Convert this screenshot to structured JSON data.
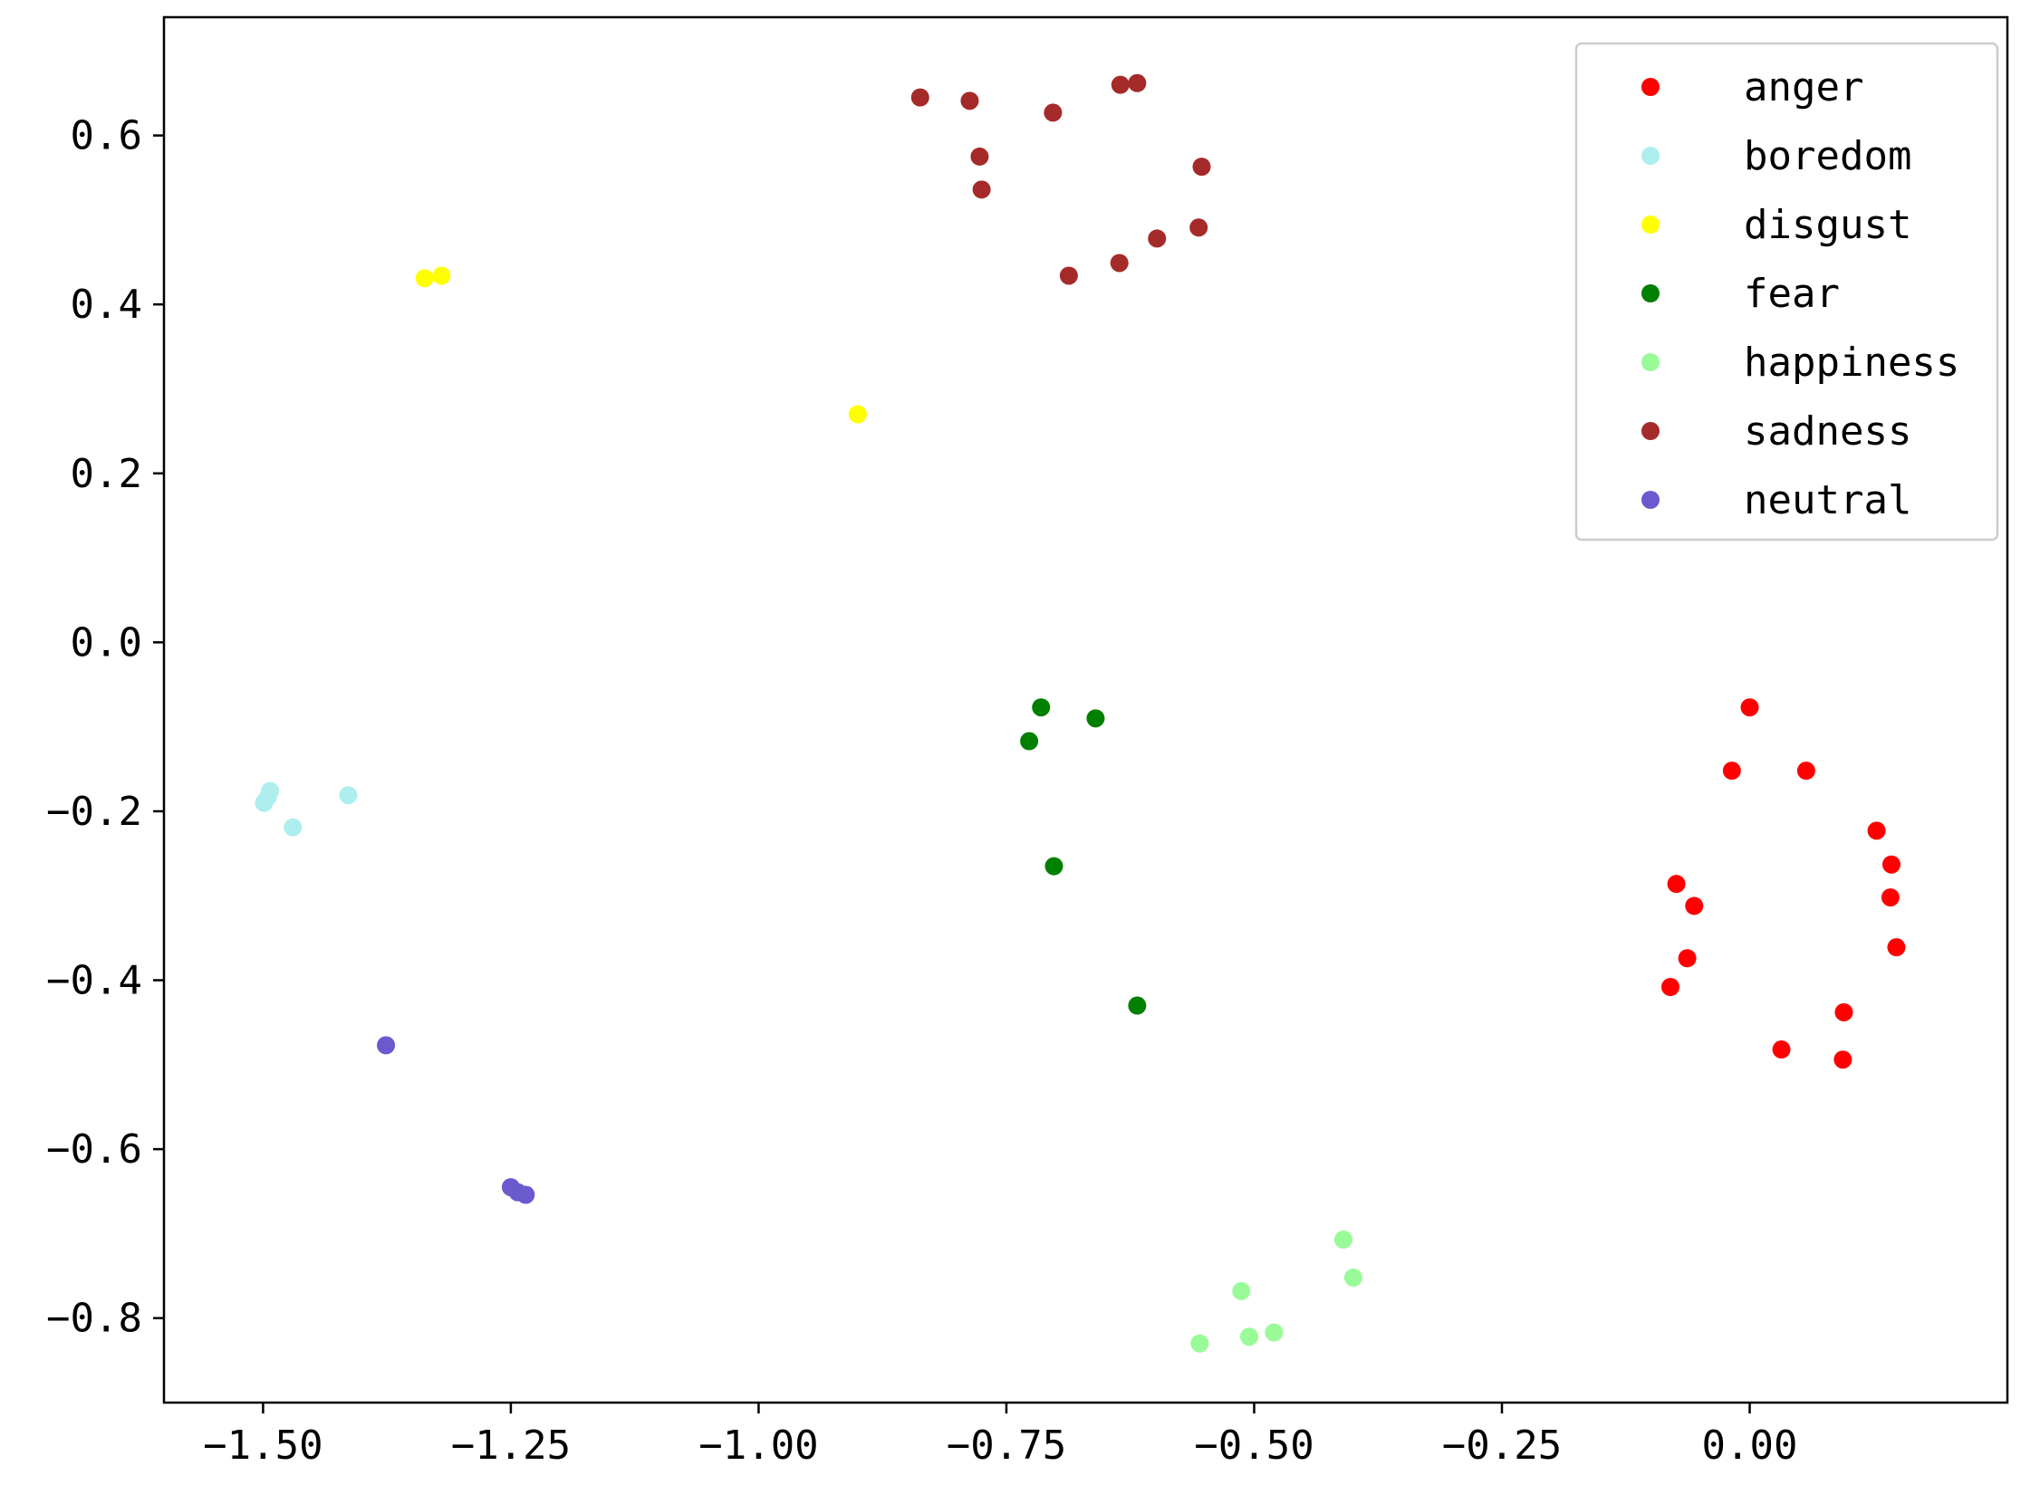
{
  "chart_data": {
    "type": "scatter",
    "title": "",
    "xlabel": "",
    "ylabel": "",
    "xlim": [
      -1.6,
      0.26
    ],
    "ylim": [
      -0.9,
      0.74
    ],
    "xticks": [
      -1.5,
      -1.25,
      -1.0,
      -0.75,
      -0.5,
      -0.25,
      0.0
    ],
    "xtick_labels": [
      "−1.50",
      "−1.25",
      "−1.00",
      "−0.75",
      "−0.50",
      "−0.25",
      "0.00"
    ],
    "yticks": [
      0.6,
      0.4,
      0.2,
      0.0,
      -0.2,
      -0.4,
      -0.6,
      -0.8
    ],
    "ytick_labels": [
      "0.6",
      "0.4",
      "0.2",
      "0.0",
      "−0.2",
      "−0.4",
      "−0.6",
      "−0.8"
    ],
    "grid": false,
    "legend_position": "top-right",
    "series": [
      {
        "name": "anger",
        "color": "#ff0000",
        "points": [
          [
            0.0,
            -0.077
          ],
          [
            -0.018,
            -0.152
          ],
          [
            0.057,
            -0.152
          ],
          [
            0.128,
            -0.223
          ],
          [
            0.143,
            -0.263
          ],
          [
            0.142,
            -0.302
          ],
          [
            0.148,
            -0.361
          ],
          [
            -0.074,
            -0.286
          ],
          [
            -0.056,
            -0.312
          ],
          [
            -0.063,
            -0.374
          ],
          [
            -0.08,
            -0.408
          ],
          [
            0.095,
            -0.438
          ],
          [
            0.032,
            -0.482
          ],
          [
            0.094,
            -0.494
          ]
        ]
      },
      {
        "name": "boredom",
        "color": "#aeeeee",
        "points": [
          [
            -1.493,
            -0.176
          ],
          [
            -1.495,
            -0.183
          ],
          [
            -1.499,
            -0.19
          ],
          [
            -1.47,
            -0.219
          ],
          [
            -1.414,
            -0.181
          ]
        ]
      },
      {
        "name": "disgust",
        "color": "#ffff00",
        "points": [
          [
            -1.337,
            0.431
          ],
          [
            -1.32,
            0.434
          ],
          [
            -0.9,
            0.27
          ]
        ]
      },
      {
        "name": "fear",
        "color": "#008000",
        "points": [
          [
            -0.715,
            -0.077
          ],
          [
            -0.66,
            -0.09
          ],
          [
            -0.727,
            -0.117
          ],
          [
            -0.702,
            -0.265
          ],
          [
            -0.618,
            -0.43
          ]
        ]
      },
      {
        "name": "happiness",
        "color": "#98fb98",
        "points": [
          [
            -0.41,
            -0.707
          ],
          [
            -0.4,
            -0.752
          ],
          [
            -0.513,
            -0.768
          ],
          [
            -0.48,
            -0.817
          ],
          [
            -0.505,
            -0.822
          ],
          [
            -0.555,
            -0.83
          ]
        ]
      },
      {
        "name": "sadness",
        "color": "#a52a2a",
        "points": [
          [
            -0.837,
            0.645
          ],
          [
            -0.787,
            0.641
          ],
          [
            -0.703,
            0.627
          ],
          [
            -0.635,
            0.66
          ],
          [
            -0.618,
            0.662
          ],
          [
            -0.777,
            0.575
          ],
          [
            -0.775,
            0.536
          ],
          [
            -0.553,
            0.563
          ],
          [
            -0.556,
            0.491
          ],
          [
            -0.598,
            0.478
          ],
          [
            -0.636,
            0.449
          ],
          [
            -0.687,
            0.434
          ]
        ]
      },
      {
        "name": "neutral",
        "color": "#6a5acd",
        "points": [
          [
            -1.376,
            -0.477
          ],
          [
            -1.25,
            -0.645
          ],
          [
            -1.243,
            -0.651
          ],
          [
            -1.235,
            -0.654
          ]
        ]
      }
    ]
  }
}
